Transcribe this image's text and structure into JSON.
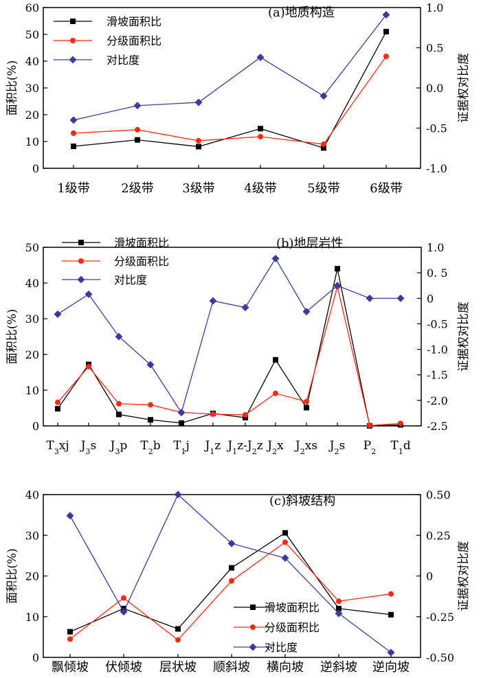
{
  "colors": {
    "landslide": "#000000",
    "graded": "#ff2a12",
    "contrast": "#3b3b9e"
  },
  "chart_data": [
    {
      "type": "line",
      "title": "(a)地质构造",
      "ylabel": "面积比(%)",
      "y2label": "证据权对比度",
      "ylim": [
        0,
        60
      ],
      "y2lim": [
        -1.0,
        1.0
      ],
      "yticks": [
        "0",
        "10",
        "20",
        "30",
        "40",
        "50",
        "60"
      ],
      "y2ticks": [
        "-1.0",
        "-0.5",
        "0.0",
        "0.5",
        "1.0"
      ],
      "categories": [
        "1级带",
        "2级带",
        "3级带",
        "4级带",
        "5级带",
        "6级带"
      ],
      "series": [
        {
          "name": "滑坡面积比",
          "axis": "left",
          "marker": "square",
          "values": [
            8.2,
            10.6,
            8.1,
            14.8,
            7.6,
            51.0
          ]
        },
        {
          "name": "分级面积比",
          "axis": "left",
          "marker": "circle",
          "values": [
            13.1,
            14.4,
            10.3,
            11.8,
            9.0,
            41.8
          ]
        },
        {
          "name": "对比度",
          "axis": "right",
          "marker": "diamond",
          "values": [
            -0.4,
            -0.22,
            -0.18,
            0.38,
            -0.1,
            0.91
          ]
        }
      ],
      "legend": "top-left"
    },
    {
      "type": "line",
      "title": "(b)地层岩性",
      "ylabel": "面积比(%)",
      "y2label": "证据权对比度",
      "ylim": [
        0,
        50
      ],
      "y2lim": [
        -2.5,
        1.0
      ],
      "yticks": [
        "0",
        "10",
        "20",
        "30",
        "40",
        "50"
      ],
      "y2ticks": [
        "-2.5",
        "-2.0",
        "-1.5",
        "-1.0",
        "-0.5",
        "0",
        "0. 5",
        "1.0"
      ],
      "categories": [
        {
          "label": "T₃xj",
          "parts": [
            [
              "T",
              ""
            ],
            [
              "3",
              "sub"
            ],
            [
              "xj",
              ""
            ]
          ]
        },
        {
          "label": "J₃s",
          "parts": [
            [
              "J",
              ""
            ],
            [
              "3",
              "sub"
            ],
            [
              "s",
              ""
            ]
          ]
        },
        {
          "label": "J₃p",
          "parts": [
            [
              "J",
              ""
            ],
            [
              "3",
              "sub"
            ],
            [
              "p",
              ""
            ]
          ]
        },
        {
          "label": "T₂b",
          "parts": [
            [
              "T",
              ""
            ],
            [
              "2",
              "sub"
            ],
            [
              "b",
              ""
            ]
          ]
        },
        {
          "label": "T₁j",
          "parts": [
            [
              "T",
              ""
            ],
            [
              "1",
              "sub"
            ],
            [
              "j",
              ""
            ]
          ]
        },
        {
          "label": "J₁z",
          "parts": [
            [
              "J",
              ""
            ],
            [
              "1",
              "sub"
            ],
            [
              "z",
              ""
            ]
          ]
        },
        {
          "label": "J₁z-J₂z",
          "parts": [
            [
              "J",
              ""
            ],
            [
              "1",
              "sub"
            ],
            [
              "z-J",
              ""
            ],
            [
              "2",
              "sub"
            ],
            [
              "z",
              ""
            ]
          ]
        },
        {
          "label": "J₂x",
          "parts": [
            [
              "J",
              ""
            ],
            [
              "2",
              "sub"
            ],
            [
              "x",
              ""
            ]
          ]
        },
        {
          "label": "J₂xs",
          "parts": [
            [
              "J",
              ""
            ],
            [
              "2",
              "sub"
            ],
            [
              "xs",
              ""
            ]
          ]
        },
        {
          "label": "J₂s",
          "parts": [
            [
              "J",
              ""
            ],
            [
              "2",
              "sub"
            ],
            [
              "s",
              ""
            ]
          ]
        },
        {
          "label": "P₂",
          "parts": [
            [
              "P",
              ""
            ],
            [
              "2",
              "sub"
            ]
          ]
        },
        {
          "label": "T₁d",
          "parts": [
            [
              "T",
              ""
            ],
            [
              "1",
              "sub"
            ],
            [
              "d",
              ""
            ]
          ]
        }
      ],
      "series": [
        {
          "name": "滑坡面积比",
          "axis": "left",
          "marker": "square",
          "values": [
            4.8,
            17.2,
            3.2,
            1.7,
            0.8,
            3.5,
            2.3,
            18.5,
            5.1,
            44.0,
            0.0,
            0.3
          ]
        },
        {
          "name": "分级面积比",
          "axis": "left",
          "marker": "circle",
          "values": [
            6.6,
            16.6,
            6.2,
            5.9,
            3.8,
            3.3,
            3.1,
            9.1,
            6.8,
            39.0,
            0.1,
            0.7
          ]
        },
        {
          "name": "对比度",
          "axis": "right",
          "marker": "diamond",
          "values": [
            -0.31,
            0.08,
            -0.75,
            -1.3,
            -2.24,
            -0.05,
            -0.18,
            0.78,
            -0.26,
            0.25,
            0.0,
            0.0
          ]
        }
      ],
      "legend": "top-left"
    },
    {
      "type": "line",
      "title": "(c)斜坡结构",
      "ylabel": "面积比(%)",
      "y2label": "证据权对比度",
      "ylim": [
        0,
        40
      ],
      "y2lim": [
        -0.5,
        0.5
      ],
      "yticks": [
        "0",
        "10",
        "20",
        "30",
        "40"
      ],
      "y2ticks": [
        "-0.50",
        "-0.25",
        "0",
        "0.25",
        "0.50"
      ],
      "categories": [
        "飘倾坡",
        "伏倾坡",
        "层状坡",
        "顺斜坡",
        "横向坡",
        "逆斜坡",
        "逆向坡"
      ],
      "series": [
        {
          "name": "滑坡面积比",
          "axis": "left",
          "marker": "square",
          "values": [
            6.3,
            12.0,
            7.0,
            22.0,
            30.6,
            12.0,
            10.5
          ]
        },
        {
          "name": "分级面积比",
          "axis": "left",
          "marker": "circle",
          "values": [
            4.5,
            14.6,
            4.3,
            18.8,
            28.3,
            13.8,
            15.6
          ]
        },
        {
          "name": "对比度",
          "axis": "right",
          "marker": "diamond",
          "values": [
            0.37,
            -0.22,
            0.5,
            0.2,
            0.11,
            -0.23,
            -0.47
          ]
        }
      ],
      "legend": "bottom-right"
    }
  ]
}
